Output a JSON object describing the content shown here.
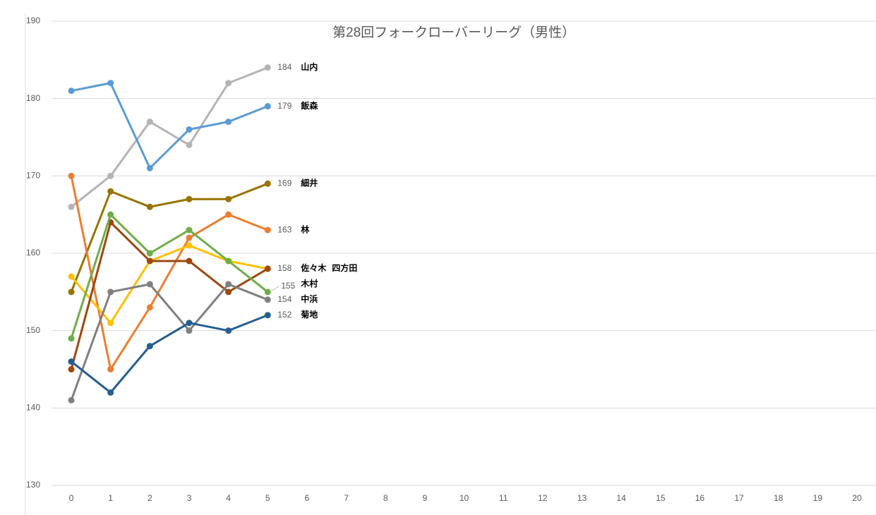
{
  "chart_data": {
    "type": "line",
    "title": "第28回フォークローバーリーグ（男性）",
    "x": [
      0,
      1,
      2,
      3,
      4,
      5
    ],
    "xlim": [
      -0.5,
      20.5
    ],
    "xticks": [
      0,
      1,
      2,
      3,
      4,
      5,
      6,
      7,
      8,
      9,
      10,
      11,
      12,
      13,
      14,
      15,
      16,
      17,
      18,
      19,
      20
    ],
    "ylim": [
      130,
      190
    ],
    "yticks": [
      130,
      140,
      150,
      160,
      170,
      180,
      190
    ],
    "grid": true,
    "series": [
      {
        "name": "山内",
        "color": "#b4b4b4",
        "values": [
          166,
          170,
          177,
          174,
          182,
          184
        ]
      },
      {
        "name": "飯森",
        "color": "#5b9bd5",
        "values": [
          181,
          182,
          171,
          176,
          177,
          179
        ]
      },
      {
        "name": "細井",
        "color": "#997300",
        "values": [
          155,
          168,
          166,
          167,
          167,
          169
        ]
      },
      {
        "name": "林",
        "color": "#ed7d31",
        "values": [
          170,
          145,
          153,
          162,
          165,
          163
        ]
      },
      {
        "name": "佐々木",
        "color": "#ffc000",
        "values": [
          157,
          151,
          159,
          161,
          159,
          158
        ]
      },
      {
        "name": "四方田",
        "color": "#9e480e",
        "values": [
          145,
          164,
          159,
          159,
          155,
          158
        ]
      },
      {
        "name": "木村",
        "color": "#70ad47",
        "values": [
          149,
          165,
          160,
          163,
          159,
          155
        ]
      },
      {
        "name": "中浜",
        "color": "#7f7f7f",
        "values": [
          141,
          155,
          156,
          150,
          156,
          154
        ]
      },
      {
        "name": "菊地",
        "color": "#255e91",
        "values": [
          146,
          142,
          148,
          151,
          150,
          152
        ]
      }
    ]
  }
}
